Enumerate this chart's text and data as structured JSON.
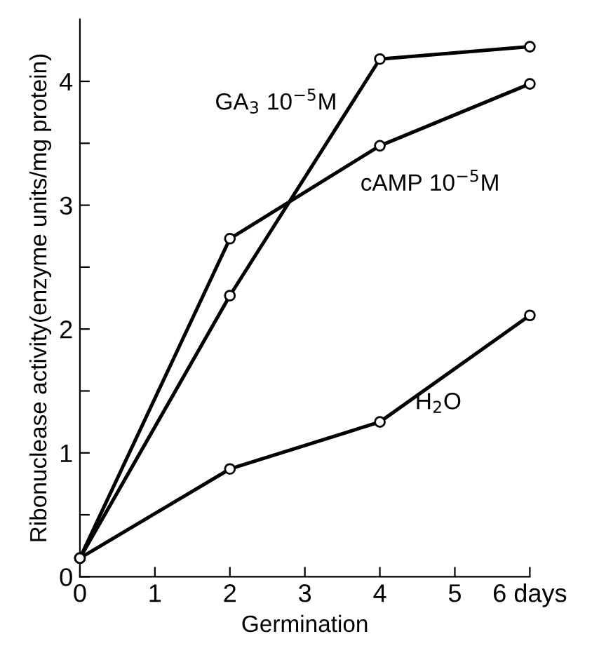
{
  "chart_data": {
    "type": "line",
    "xlabel": "Germination",
    "ylabel": "Ribonuclease activity(enzyme units/mg protein)",
    "x": [
      0,
      2,
      4,
      6
    ],
    "series": [
      {
        "name": "GA$_{3}$ 10$^{−5}$M",
        "color": "#000000",
        "values": [
          0.15,
          2.27,
          4.18,
          4.28
        ]
      },
      {
        "name": "cAMP 10$^{−5}$M",
        "color": "#000000",
        "values": [
          0.15,
          2.73,
          3.48,
          3.98
        ]
      },
      {
        "name": "H$_{2}$O",
        "color": "#000000",
        "values": [
          0.15,
          0.87,
          1.25,
          2.11
        ]
      }
    ],
    "xlim": [
      0,
      6
    ],
    "ylim": [
      0,
      4.5
    ],
    "xticks": [
      0,
      1,
      2,
      3,
      4,
      5,
      {
        "value": 6,
        "label": "6 days"
      }
    ],
    "yticks": [
      0,
      {
        "value": 0.5,
        "label": null
      },
      1,
      {
        "value": 1.5,
        "label": null
      },
      2,
      {
        "value": 2.5,
        "label": null
      },
      3,
      {
        "value": 3.5,
        "label": null
      },
      4
    ],
    "marker": "circle",
    "line_style": "solid",
    "grid": false,
    "legend": false
  }
}
